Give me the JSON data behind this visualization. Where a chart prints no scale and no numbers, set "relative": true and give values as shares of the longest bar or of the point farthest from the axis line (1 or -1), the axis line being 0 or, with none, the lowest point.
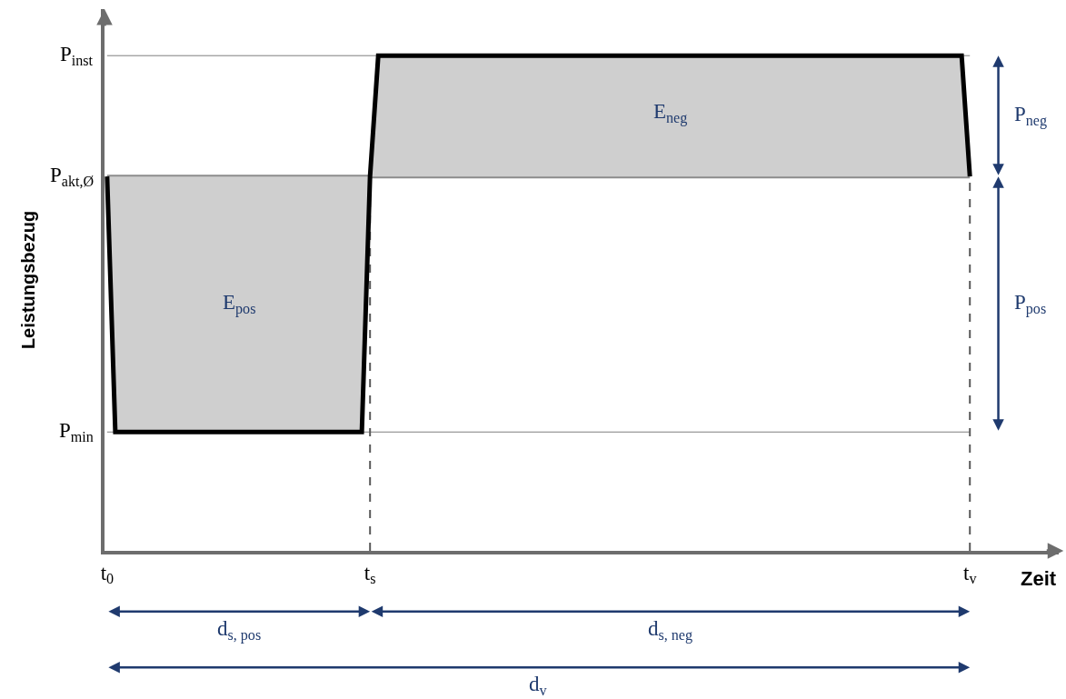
{
  "chart_data": {
    "type": "line",
    "relative": true,
    "xlabel": "Zeit",
    "ylabel": "Leistungsbezug",
    "categories": [
      "t$_{0}$",
      null,
      null,
      null,
      null,
      null,
      null,
      null,
      null,
      null,
      null,
      null,
      null,
      null,
      null,
      null,
      null,
      null,
      null,
      null,
      null,
      null,
      null,
      null,
      null,
      null,
      null,
      null,
      null,
      null,
      null,
      null,
      "t$_{s}$",
      null,
      null,
      null,
      null,
      null,
      null,
      null,
      null,
      null,
      null,
      null,
      null,
      null,
      null,
      null,
      null,
      null,
      null,
      null,
      null,
      null,
      null,
      null,
      null,
      null,
      null,
      null,
      null,
      null,
      null,
      null,
      null,
      null,
      null,
      null,
      null,
      null,
      null,
      null,
      null,
      null,
      null,
      null,
      null,
      null,
      null,
      null,
      null,
      null,
      null,
      null,
      null,
      null,
      null,
      null,
      null,
      null,
      null,
      null,
      null,
      null,
      null,
      null,
      null,
      null,
      null,
      null,
      null,
      null,
      null,
      null,
      null,
      "t$_{v}$"
    ],
    "series": [
      {
        "color": "#000000",
        "values": [
          0.756,
          0.24,
          0.24,
          0.24,
          0.24,
          0.24,
          0.24,
          0.24,
          0.24,
          0.24,
          0.24,
          0.24,
          0.24,
          0.24,
          0.24,
          0.24,
          0.24,
          0.24,
          0.24,
          0.24,
          0.24,
          0.24,
          0.24,
          0.24,
          0.24,
          0.24,
          0.24,
          0.24,
          0.24,
          0.24,
          0.24,
          0.24,
          0.756,
          1,
          1,
          1,
          1,
          1,
          1,
          1,
          1,
          1,
          1,
          1,
          1,
          1,
          1,
          1,
          1,
          1,
          1,
          1,
          1,
          1,
          1,
          1,
          1,
          1,
          1,
          1,
          1,
          1,
          1,
          1,
          1,
          1,
          1,
          1,
          1,
          1,
          1,
          1,
          1,
          1,
          1,
          1,
          1,
          1,
          1,
          1,
          1,
          1,
          1,
          1,
          1,
          1,
          1,
          1,
          1,
          1,
          1,
          1,
          1,
          1,
          1,
          1,
          1,
          1,
          1,
          1,
          1,
          1,
          1,
          1,
          1,
          0.756
        ],
        "lower": [
          0.756,
          0.24,
          0.24,
          0.24,
          0.24,
          0.24,
          0.24,
          0.24,
          0.24,
          0.24,
          0.24,
          0.24,
          0.24,
          0.24,
          0.24,
          0.24,
          0.24,
          0.24,
          0.24,
          0.24,
          0.24,
          0.24,
          0.24,
          0.24,
          0.24,
          0.24,
          0.24,
          0.24,
          0.24,
          0.24,
          0.24,
          0.24,
          0.756,
          0.756,
          0.756,
          0.756,
          0.756,
          0.756,
          0.756,
          0.756,
          0.756,
          0.756,
          0.756,
          0.756,
          0.756,
          0.756,
          0.756,
          0.756,
          0.756,
          0.756,
          0.756,
          0.756,
          0.756,
          0.756,
          0.756,
          0.756,
          0.756,
          0.756,
          0.756,
          0.756,
          0.756,
          0.756,
          0.756,
          0.756,
          0.756,
          0.756,
          0.756,
          0.756,
          0.756,
          0.756,
          0.756,
          0.756,
          0.756,
          0.756,
          0.756,
          0.756,
          0.756,
          0.756,
          0.756,
          0.756,
          0.756,
          0.756,
          0.756,
          0.756,
          0.756,
          0.756,
          0.756,
          0.756,
          0.756,
          0.756,
          0.756,
          0.756,
          0.756,
          0.756,
          0.756,
          0.756,
          0.756,
          0.756,
          0.756,
          0.756,
          0.756,
          0.756,
          0.756,
          0.756,
          0.756,
          0.756
        ],
        "upper": [
          0.756,
          0.756,
          0.756,
          0.756,
          0.756,
          0.756,
          0.756,
          0.756,
          0.756,
          0.756,
          0.756,
          0.756,
          0.756,
          0.756,
          0.756,
          0.756,
          0.756,
          0.756,
          0.756,
          0.756,
          0.756,
          0.756,
          0.756,
          0.756,
          0.756,
          0.756,
          0.756,
          0.756,
          0.756,
          0.756,
          0.756,
          0.756,
          0.756,
          1,
          1,
          1,
          1,
          1,
          1,
          1,
          1,
          1,
          1,
          1,
          1,
          1,
          1,
          1,
          1,
          1,
          1,
          1,
          1,
          1,
          1,
          1,
          1,
          1,
          1,
          1,
          1,
          1,
          1,
          1,
          1,
          1,
          1,
          1,
          1,
          1,
          1,
          1,
          1,
          1,
          1,
          1,
          1,
          1,
          1,
          1,
          1,
          1,
          1,
          1,
          1,
          1,
          1,
          1,
          1,
          1,
          1,
          1,
          1,
          1,
          1,
          1,
          1,
          1,
          1,
          1,
          1,
          1,
          1,
          1,
          1,
          0.756
        ]
      }
    ],
    "ref_lines": [
      {
        "axis": "y",
        "value": 1,
        "label": "P$_{inst}$",
        "color": "#7f7f7f"
      },
      {
        "axis": "y",
        "value": 0.756,
        "label": "P$_{akt,Ø}$",
        "color": "#8c8c8c"
      },
      {
        "axis": "y",
        "value": 0.24,
        "label": "P$_{min}$",
        "color": "#7f7f7f"
      },
      {
        "axis": "x",
        "value": "t$_{s}$",
        "color": "#595959",
        "line_style": "dashed"
      },
      {
        "axis": "x",
        "value": "t$_{v}$",
        "color": "#595959",
        "line_style": "dashed"
      }
    ],
    "annotations": [
      "E$_{neg}$",
      "E$_{pos}$",
      "P$_{neg}$",
      "P$_{pos}$",
      "d$_{s, pos}$",
      "d$_{s, neg}$",
      "d$_{v}$"
    ],
    "marker": "none"
  }
}
